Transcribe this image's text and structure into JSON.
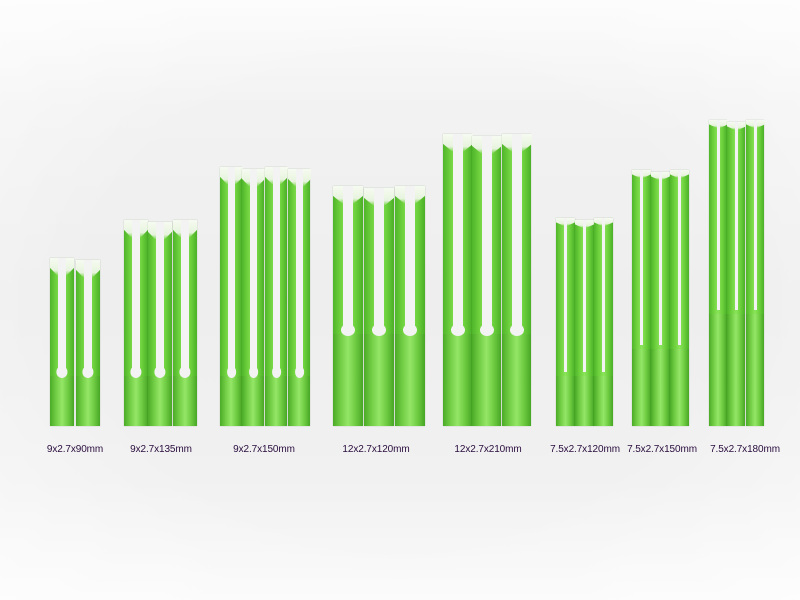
{
  "labels": {
    "g1": "9x2.7x90mm",
    "g2": "9x2.7x135mm",
    "g3": "9x2.7x150mm",
    "g4": "12x2.7x120mm",
    "g5": "12x2.7x210mm",
    "g6": "7.5x2.7x120mm",
    "g7": "7.5x2.7x150mm",
    "g8": "7.5x2.7x180mm"
  },
  "colors": {
    "stick_green": "#6fd13e",
    "label_text": "#2a0d3e",
    "background": "#f0f0f0"
  }
}
